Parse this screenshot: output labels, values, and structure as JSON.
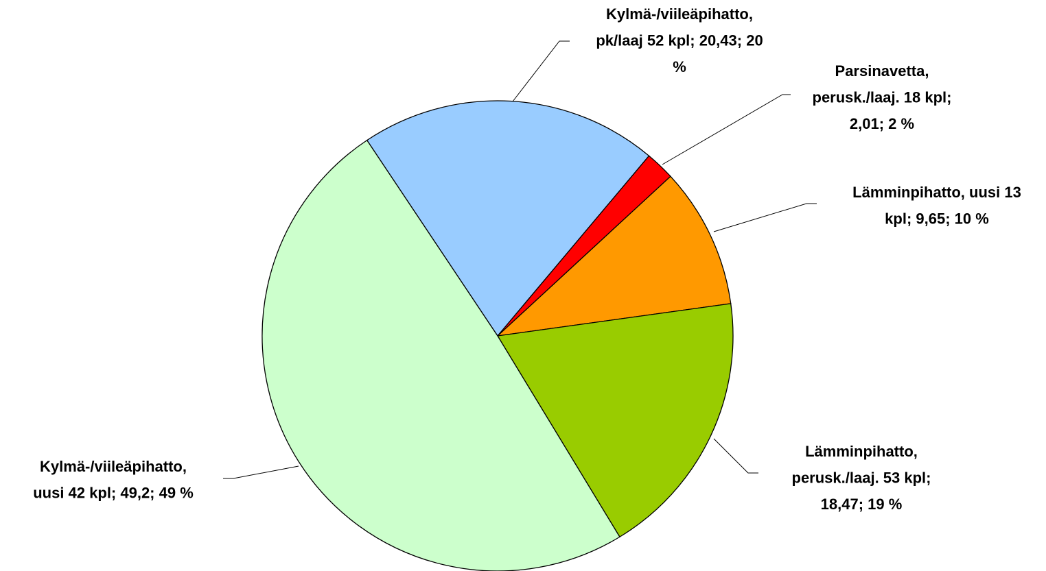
{
  "chart_data": {
    "type": "pie",
    "values": [
      20.43,
      2.01,
      9.65,
      18.47,
      49.2
    ],
    "value_labels": [
      [
        "Kylmä-/viileäpihatto,",
        "pk/laaj 52 kpl; 20,43; 20",
        "%"
      ],
      [
        "Parsinavetta,",
        "perusk./laaj.  18 kpl;",
        "2,01; 2 %"
      ],
      [
        "Lämminpihatto, uusi 13",
        "kpl; 9,65; 10 %"
      ],
      [
        "Lämminpihatto,",
        "perusk./laaj. 53 kpl;",
        "18,47; 19 %"
      ],
      [
        "Kylmä-/viileäpihatto,",
        "uusi 42 kpl; 49,2; 49 %"
      ]
    ],
    "colors": [
      "#99ccff",
      "#ff0000",
      "#ff9900",
      "#99cc00",
      "#ccffcc"
    ]
  }
}
